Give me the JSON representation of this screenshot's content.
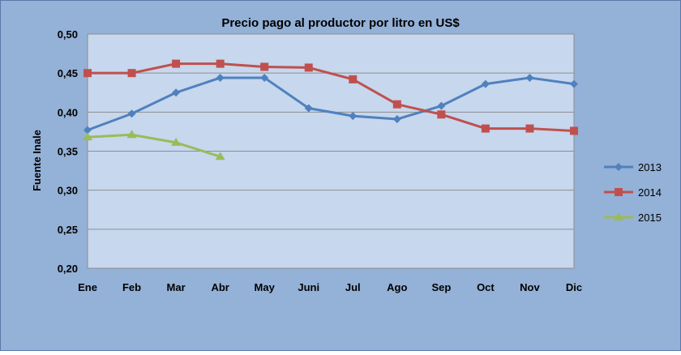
{
  "chart_data": {
    "type": "line",
    "title": "Precio pago al productor por litro en US$",
    "ylabel": "Fuente Inale",
    "xlabel": "",
    "categories": [
      "Ene",
      "Feb",
      "Mar",
      "Abr",
      "May",
      "Juni",
      "Jul",
      "Ago",
      "Sep",
      "Oct",
      "Nov",
      "Dic"
    ],
    "ylim": [
      0.2,
      0.5
    ],
    "yticks": [
      "0,20",
      "0,25",
      "0,30",
      "0,35",
      "0,40",
      "0,45",
      "0,50"
    ],
    "grid": true,
    "legend_position": "right",
    "series": [
      {
        "name": "2013",
        "color": "#4F81BD",
        "marker": "diamond",
        "values": [
          0.377,
          0.398,
          0.425,
          0.444,
          0.444,
          0.405,
          0.395,
          0.391,
          0.408,
          0.436,
          0.444,
          0.436
        ]
      },
      {
        "name": "2014",
        "color": "#C0504D",
        "marker": "square",
        "values": [
          0.45,
          0.45,
          0.462,
          0.462,
          0.458,
          0.457,
          0.442,
          0.41,
          0.397,
          0.379,
          0.379,
          0.376
        ]
      },
      {
        "name": "2015",
        "color": "#9BBB59",
        "marker": "triangle",
        "values": [
          0.368,
          0.371,
          0.361,
          0.343,
          null,
          null,
          null,
          null,
          null,
          null,
          null,
          null
        ]
      }
    ],
    "colors": {
      "background": "#94B1D7",
      "plot_area": "#C6D7EE",
      "gridline": "#8E8E8E",
      "border": "#5A77A8"
    }
  }
}
